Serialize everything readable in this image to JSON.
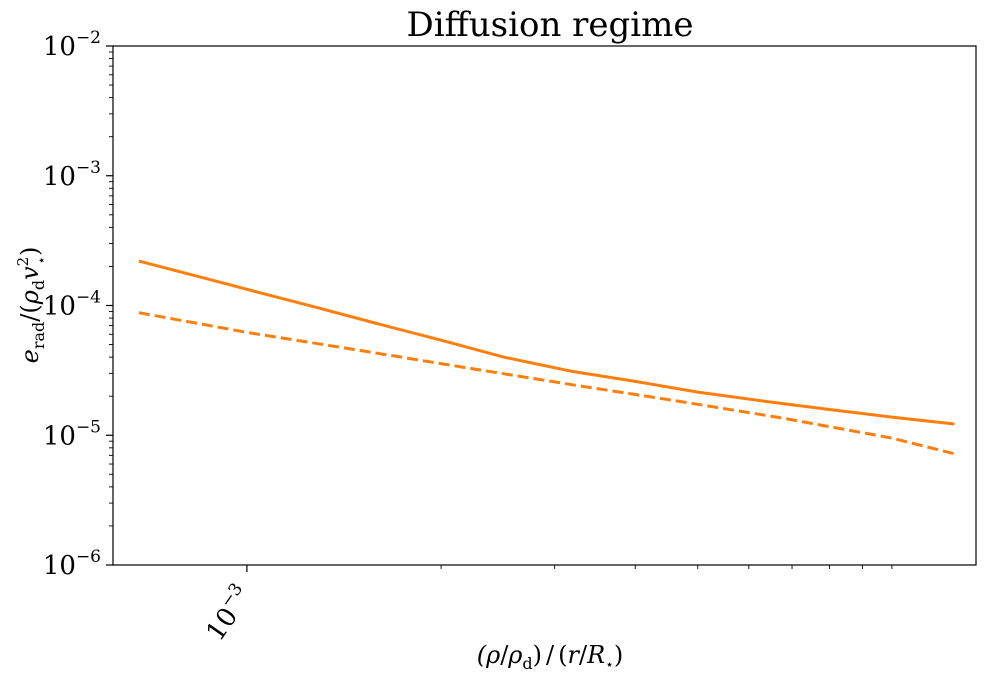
{
  "chart_data": {
    "type": "line",
    "title": "Diffusion regime",
    "xlabel": "(ρ/ρd)/(r/R⋆)",
    "ylabel": "erad/(ρdv⋆2)",
    "x_scale": "log",
    "y_scale": "log",
    "xlim": [
      0.00062,
      0.0135
    ],
    "ylim": [
      1e-06,
      0.01
    ],
    "x_major_ticks": [
      0.001
    ],
    "x_major_tick_labels": [
      {
        "base": "10",
        "exp": "−3"
      }
    ],
    "x_minor_ticks": [
      0.002,
      0.003,
      0.004,
      0.005,
      0.006,
      0.007,
      0.008,
      0.009,
      0.01
    ],
    "y_major_ticks": [
      1e-06,
      1e-05,
      0.0001,
      0.001,
      0.01
    ],
    "y_major_tick_labels": [
      {
        "base": "10",
        "exp": "−6"
      },
      {
        "base": "10",
        "exp": "−5"
      },
      {
        "base": "10",
        "exp": "−4"
      },
      {
        "base": "10",
        "exp": "−3"
      },
      {
        "base": "10",
        "exp": "−2"
      }
    ],
    "grid": false,
    "color": "#ff7f0e",
    "series": [
      {
        "style": "solid",
        "x": [
          0.00068,
          0.00085,
          0.00105,
          0.0013,
          0.0016,
          0.002,
          0.0025,
          0.0032,
          0.004,
          0.005,
          0.0065,
          0.008,
          0.01,
          0.0125
        ],
        "y": [
          0.00022,
          0.000165,
          0.000125,
          9.5e-05,
          7.2e-05,
          5.4e-05,
          4e-05,
          3.1e-05,
          2.6e-05,
          2.15e-05,
          1.8e-05,
          1.58e-05,
          1.38e-05,
          1.22e-05
        ]
      },
      {
        "style": "dashed",
        "x": [
          0.00068,
          0.001,
          0.0015,
          0.0022,
          0.0032,
          0.0047,
          0.0068,
          0.01,
          0.0125
        ],
        "y": [
          8.8e-05,
          6.2e-05,
          4.5e-05,
          3.3e-05,
          2.45e-05,
          1.82e-05,
          1.35e-05,
          9.5e-06,
          7.2e-06
        ]
      }
    ]
  }
}
